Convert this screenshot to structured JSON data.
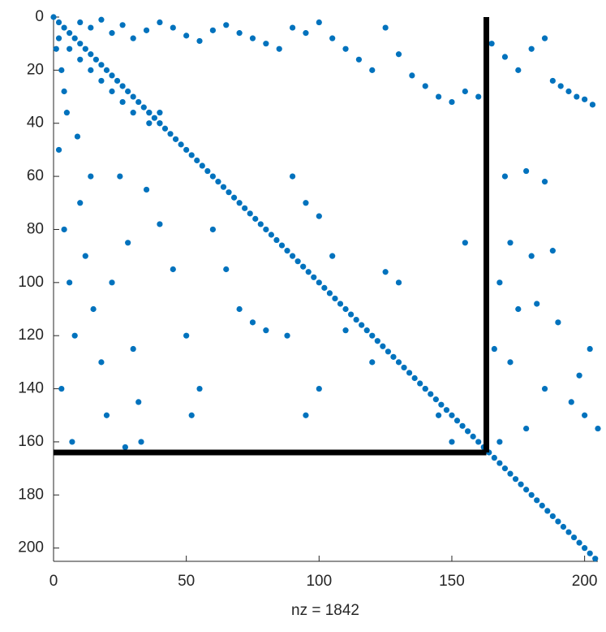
{
  "chart_data": {
    "type": "scatter",
    "xlabel": "nz = 1842",
    "color": "#0072bd",
    "xlim": [
      0,
      205
    ],
    "ylim": [
      0,
      205
    ],
    "y_inverted": true,
    "xticks": [
      0,
      50,
      100,
      150,
      200
    ],
    "yticks": [
      0,
      20,
      40,
      60,
      80,
      100,
      120,
      140,
      160,
      180,
      200
    ],
    "x": [
      0,
      2,
      4,
      6,
      8,
      10,
      12,
      14,
      16,
      18,
      20,
      22,
      24,
      26,
      28,
      30,
      32,
      34,
      36,
      38,
      40,
      42,
      44,
      46,
      48,
      50,
      52,
      54,
      56,
      58,
      60,
      62,
      64,
      66,
      68,
      70,
      72,
      74,
      76,
      78,
      80,
      82,
      84,
      86,
      88,
      90,
      92,
      94,
      96,
      98,
      100,
      102,
      104,
      106,
      108,
      110,
      112,
      114,
      116,
      118,
      120,
      122,
      124,
      126,
      128,
      130,
      132,
      134,
      136,
      138,
      140,
      142,
      144,
      146,
      148,
      150,
      152,
      154,
      156,
      158,
      160,
      162,
      164,
      166,
      168,
      170,
      172,
      174,
      176,
      178,
      180,
      182,
      184,
      186,
      188,
      190,
      192,
      194,
      196,
      198,
      200,
      202,
      204,
      10,
      14,
      18,
      22,
      26,
      30,
      35,
      40,
      45,
      50,
      55,
      60,
      65,
      70,
      75,
      80,
      85,
      90,
      95,
      100,
      105,
      110,
      115,
      120,
      125,
      130,
      135,
      140,
      145,
      150,
      155,
      160,
      2,
      4,
      6,
      8,
      3,
      7,
      10,
      12,
      15,
      18,
      20,
      25,
      28,
      30,
      32,
      33,
      27,
      22,
      14,
      9,
      35,
      40,
      45,
      50,
      55,
      52,
      60,
      65,
      70,
      80,
      90,
      95,
      100,
      105,
      110,
      120,
      125,
      130,
      140,
      145,
      150,
      155,
      100,
      95,
      88,
      75,
      165,
      170,
      175,
      180,
      185,
      170,
      178,
      185,
      172,
      180,
      188,
      168,
      175,
      182,
      190,
      166,
      172,
      185,
      195,
      200,
      205,
      168,
      178,
      202,
      198,
      188,
      191,
      194,
      197,
      200,
      203,
      2,
      6,
      10,
      14,
      18,
      22,
      26,
      30,
      1,
      3,
      4,
      5,
      36,
      40,
      36,
      40
    ],
    "values": [
      0,
      2,
      4,
      6,
      8,
      10,
      12,
      14,
      16,
      18,
      20,
      22,
      24,
      26,
      28,
      30,
      32,
      34,
      36,
      38,
      40,
      42,
      44,
      46,
      48,
      50,
      52,
      54,
      56,
      58,
      60,
      62,
      64,
      66,
      68,
      70,
      72,
      74,
      76,
      78,
      80,
      82,
      84,
      86,
      88,
      90,
      92,
      94,
      96,
      98,
      100,
      102,
      104,
      106,
      108,
      110,
      112,
      114,
      116,
      118,
      120,
      122,
      124,
      126,
      128,
      130,
      132,
      134,
      136,
      138,
      140,
      142,
      144,
      146,
      148,
      150,
      152,
      154,
      156,
      158,
      160,
      162,
      164,
      166,
      168,
      170,
      172,
      174,
      176,
      178,
      180,
      182,
      184,
      186,
      188,
      190,
      192,
      194,
      196,
      198,
      200,
      202,
      204,
      2,
      4,
      1,
      6,
      3,
      8,
      5,
      2,
      4,
      7,
      9,
      5,
      3,
      6,
      8,
      10,
      12,
      4,
      6,
      2,
      8,
      12,
      16,
      20,
      4,
      14,
      22,
      26,
      30,
      32,
      28,
      30,
      50,
      80,
      100,
      120,
      140,
      160,
      70,
      90,
      110,
      130,
      150,
      60,
      85,
      125,
      145,
      160,
      162,
      100,
      60,
      45,
      65,
      78,
      95,
      120,
      140,
      150,
      80,
      95,
      110,
      118,
      60,
      70,
      75,
      90,
      118,
      130,
      96,
      100,
      140,
      150,
      160,
      85,
      140,
      150,
      120,
      115,
      10,
      15,
      20,
      12,
      8,
      60,
      58,
      62,
      85,
      90,
      88,
      100,
      110,
      108,
      115,
      125,
      130,
      140,
      145,
      150,
      155,
      160,
      155,
      125,
      135,
      24,
      26,
      28,
      30,
      31,
      33,
      8,
      12,
      16,
      20,
      24,
      28,
      32,
      36,
      12,
      20,
      28,
      36,
      36,
      40,
      40,
      36
    ],
    "lines": [
      {
        "color": "#000000",
        "x": [
          163,
          163
        ],
        "y": [
          0,
          164
        ]
      },
      {
        "color": "#000000",
        "x": [
          0,
          163
        ],
        "y": [
          164,
          164
        ]
      }
    ]
  }
}
